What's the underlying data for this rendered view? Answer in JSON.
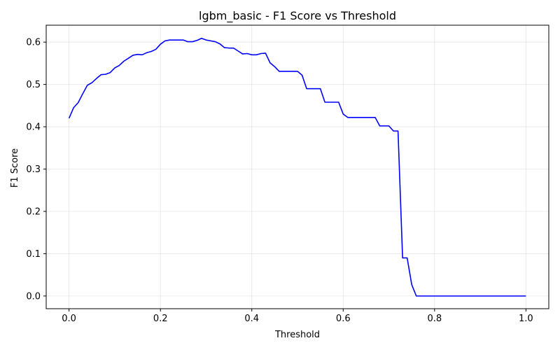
{
  "chart_data": {
    "type": "line",
    "title": "lgbm_basic - F1 Score vs Threshold",
    "xlabel": "Threshold",
    "ylabel": "F1 Score",
    "xlim": [
      -0.05,
      1.05
    ],
    "ylim": [
      -0.03,
      0.64
    ],
    "xticks": [
      0.0,
      0.2,
      0.4,
      0.6,
      0.8,
      1.0
    ],
    "xtick_labels": [
      "0.0",
      "0.2",
      "0.4",
      "0.6",
      "0.8",
      "1.0"
    ],
    "yticks": [
      0.0,
      0.1,
      0.2,
      0.3,
      0.4,
      0.5,
      0.6
    ],
    "ytick_labels": [
      "0.0",
      "0.1",
      "0.2",
      "0.3",
      "0.4",
      "0.5",
      "0.6"
    ],
    "grid": true,
    "series": [
      {
        "color": "#0000ff",
        "x": [
          0.0,
          0.01,
          0.02,
          0.03,
          0.04,
          0.05,
          0.06,
          0.07,
          0.08,
          0.09,
          0.1,
          0.11,
          0.12,
          0.13,
          0.14,
          0.15,
          0.16,
          0.17,
          0.18,
          0.19,
          0.2,
          0.21,
          0.22,
          0.23,
          0.24,
          0.25,
          0.26,
          0.27,
          0.28,
          0.29,
          0.3,
          0.31,
          0.32,
          0.33,
          0.34,
          0.35,
          0.36,
          0.37,
          0.38,
          0.39,
          0.4,
          0.41,
          0.42,
          0.43,
          0.44,
          0.45,
          0.46,
          0.47,
          0.48,
          0.49,
          0.5,
          0.51,
          0.52,
          0.53,
          0.54,
          0.55,
          0.56,
          0.57,
          0.58,
          0.59,
          0.6,
          0.61,
          0.62,
          0.63,
          0.64,
          0.65,
          0.66,
          0.67,
          0.68,
          0.69,
          0.7,
          0.71,
          0.72,
          0.73,
          0.74,
          0.75,
          0.76,
          0.77,
          0.78,
          0.79,
          0.8,
          0.85,
          0.9,
          0.95,
          1.0
        ],
        "y": [
          0.42,
          0.445,
          0.457,
          0.478,
          0.498,
          0.504,
          0.514,
          0.523,
          0.524,
          0.528,
          0.539,
          0.545,
          0.555,
          0.562,
          0.569,
          0.571,
          0.57,
          0.575,
          0.578,
          0.583,
          0.595,
          0.603,
          0.605,
          0.605,
          0.605,
          0.605,
          0.601,
          0.601,
          0.604,
          0.609,
          0.605,
          0.603,
          0.601,
          0.596,
          0.587,
          0.586,
          0.586,
          0.579,
          0.572,
          0.573,
          0.57,
          0.57,
          0.573,
          0.574,
          0.551,
          0.542,
          0.531,
          0.531,
          0.531,
          0.531,
          0.531,
          0.522,
          0.49,
          0.49,
          0.49,
          0.49,
          0.458,
          0.458,
          0.458,
          0.458,
          0.43,
          0.422,
          0.422,
          0.422,
          0.422,
          0.422,
          0.422,
          0.422,
          0.402,
          0.402,
          0.402,
          0.39,
          0.39,
          0.09,
          0.09,
          0.027,
          0.0,
          0.0,
          0.0,
          0.0,
          0.0,
          0.0,
          0.0,
          0.0,
          0.0
        ]
      }
    ]
  }
}
